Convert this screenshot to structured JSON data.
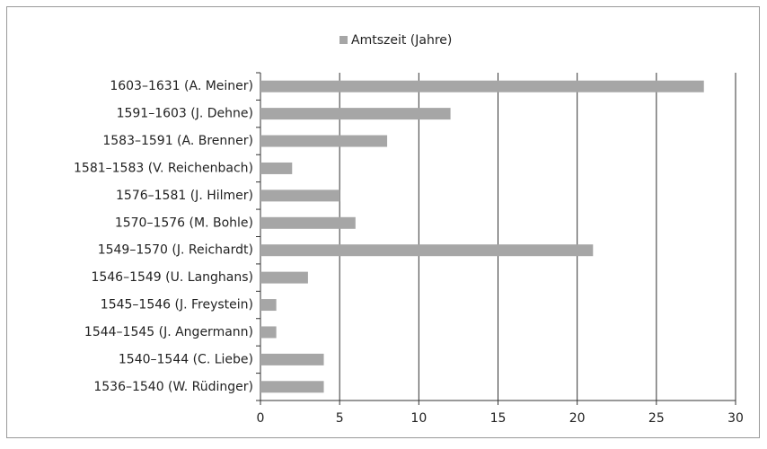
{
  "chart_data": {
    "type": "barh",
    "categories": [
      "1603–1631 (A. Meiner)",
      "1591–1603 (J. Dehne)",
      "1583–1591 (A. Brenner)",
      "1581–1583 (V. Reichenbach)",
      "1576–1581 (J. Hilmer)",
      "1570–1576 (M. Bohle)",
      "1549–1570 (J. Reichardt)",
      "1546–1549 (U. Langhans)",
      "1545–1546 (J. Freystein)",
      "1544–1545 (J. Angermann)",
      "1540–1544 (C. Liebe)",
      "1536–1540 (W. Rüdinger)"
    ],
    "series": [
      {
        "name": "Amtszeit (Jahre)",
        "color": "#a6a6a6",
        "values": [
          28,
          12,
          8,
          2,
          5,
          6,
          21,
          3,
          1,
          1,
          4,
          4
        ]
      }
    ],
    "xlim": [
      0,
      30
    ],
    "xticks": [
      0,
      5,
      10,
      15,
      20,
      25,
      30
    ],
    "grid": true,
    "legend": "top"
  }
}
